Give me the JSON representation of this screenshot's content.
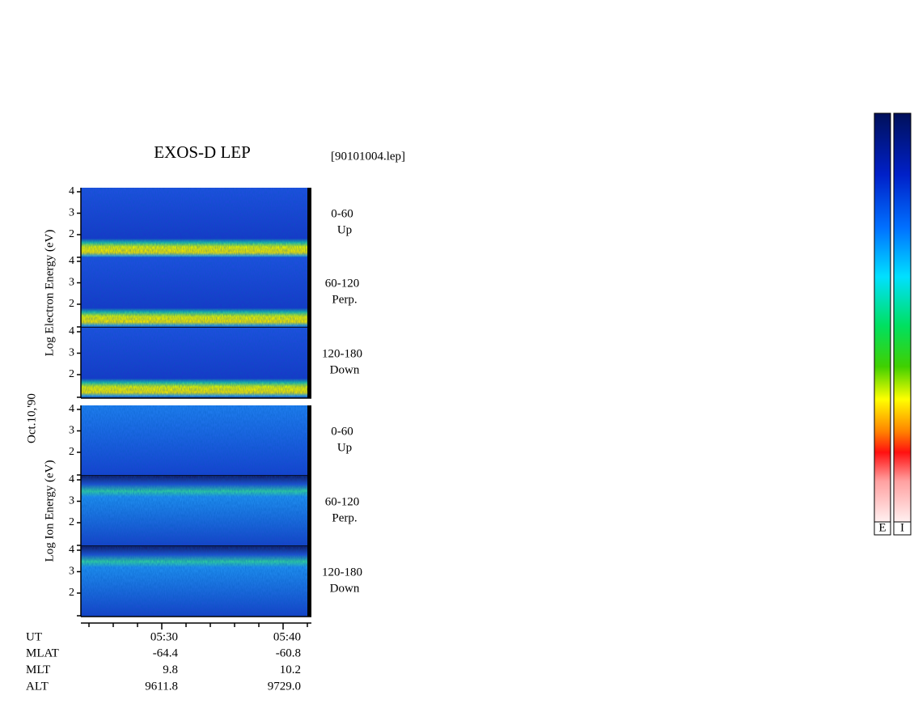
{
  "title": "EXOS-D LEP",
  "file": "[90101004.lep]",
  "date": "Oct.10,'90",
  "species": [
    {
      "label": "Log Electron Energy (eV)",
      "panels": [
        {
          "angle": "0-60",
          "direction": "Up"
        },
        {
          "angle": "60-120",
          "direction": "Perp."
        },
        {
          "angle": "120-180",
          "direction": "Down"
        }
      ]
    },
    {
      "label": "Log Ion Energy (eV)",
      "panels": [
        {
          "angle": "0-60",
          "direction": "Up"
        },
        {
          "angle": "60-120",
          "direction": "Perp."
        },
        {
          "angle": "120-180",
          "direction": "Down"
        }
      ]
    }
  ],
  "energy_ticks": [
    "4",
    "3",
    "2"
  ],
  "ephemeris": [
    {
      "name": "UT",
      "values": [
        "05:30",
        "05:40"
      ]
    },
    {
      "name": "MLAT",
      "values": [
        "-64.4",
        "-60.8"
      ]
    },
    {
      "name": "MLT",
      "values": [
        "9.8",
        "10.2"
      ]
    },
    {
      "name": "ALT",
      "values": [
        "9611.8",
        "9729.0"
      ]
    }
  ],
  "colorbars": [
    "E",
    "I"
  ]
}
